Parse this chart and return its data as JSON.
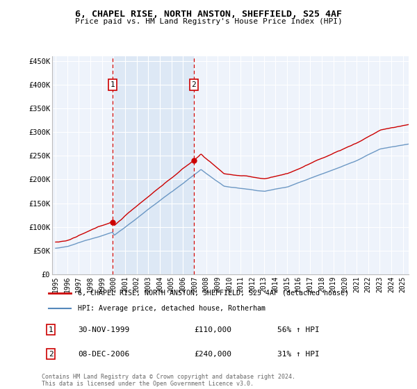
{
  "title": "6, CHAPEL RISE, NORTH ANSTON, SHEFFIELD, S25 4AF",
  "subtitle": "Price paid vs. HM Land Registry's House Price Index (HPI)",
  "legend_line1": "6, CHAPEL RISE, NORTH ANSTON, SHEFFIELD, S25 4AF (detached house)",
  "legend_line2": "HPI: Average price, detached house, Rotherham",
  "footnote": "Contains HM Land Registry data © Crown copyright and database right 2024.\nThis data is licensed under the Open Government Licence v3.0.",
  "sale1_date": 1999.92,
  "sale1_price": 110000,
  "sale1_label": "30-NOV-1999",
  "sale1_amount": "£110,000",
  "sale1_hpi": "56% ↑ HPI",
  "sale2_date": 2006.93,
  "sale2_price": 240000,
  "sale2_label": "08-DEC-2006",
  "sale2_amount": "£240,000",
  "sale2_hpi": "31% ↑ HPI",
  "red_color": "#cc0000",
  "blue_color": "#5588bb",
  "shade_color": "#dde8f5",
  "background_color": "#eef3fb",
  "grid_color": "#ffffff",
  "ylim": [
    0,
    460000
  ],
  "xlim_start": 1994.7,
  "xlim_end": 2025.5
}
